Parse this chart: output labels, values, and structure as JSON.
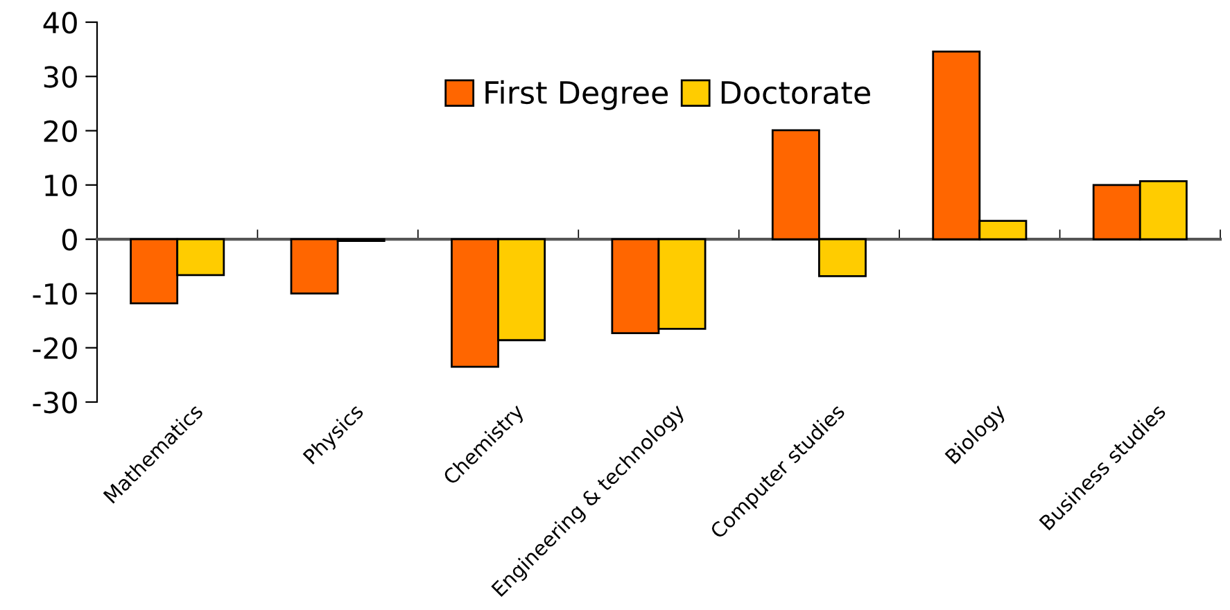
{
  "chart_data": {
    "type": "bar",
    "categories": [
      "Mathematics",
      "Physics",
      "Chemistry",
      "Engineering & technology",
      "Computer studies",
      "Biology",
      "Business studies"
    ],
    "series": [
      {
        "name": "First Degree",
        "color": "#ff6600",
        "values": [
          -11.8,
          -10,
          -23.5,
          -17.3,
          20.1,
          34.6,
          10
        ]
      },
      {
        "name": "Doctorate",
        "color": "#ffcc00",
        "values": [
          -6.6,
          -0.3,
          -18.6,
          -16.5,
          -6.8,
          3.4,
          10.7
        ]
      }
    ],
    "ylim": [
      -30,
      40
    ],
    "yticks": [
      -30,
      -20,
      -10,
      0,
      10,
      20,
      30,
      40
    ],
    "legend": "top"
  }
}
